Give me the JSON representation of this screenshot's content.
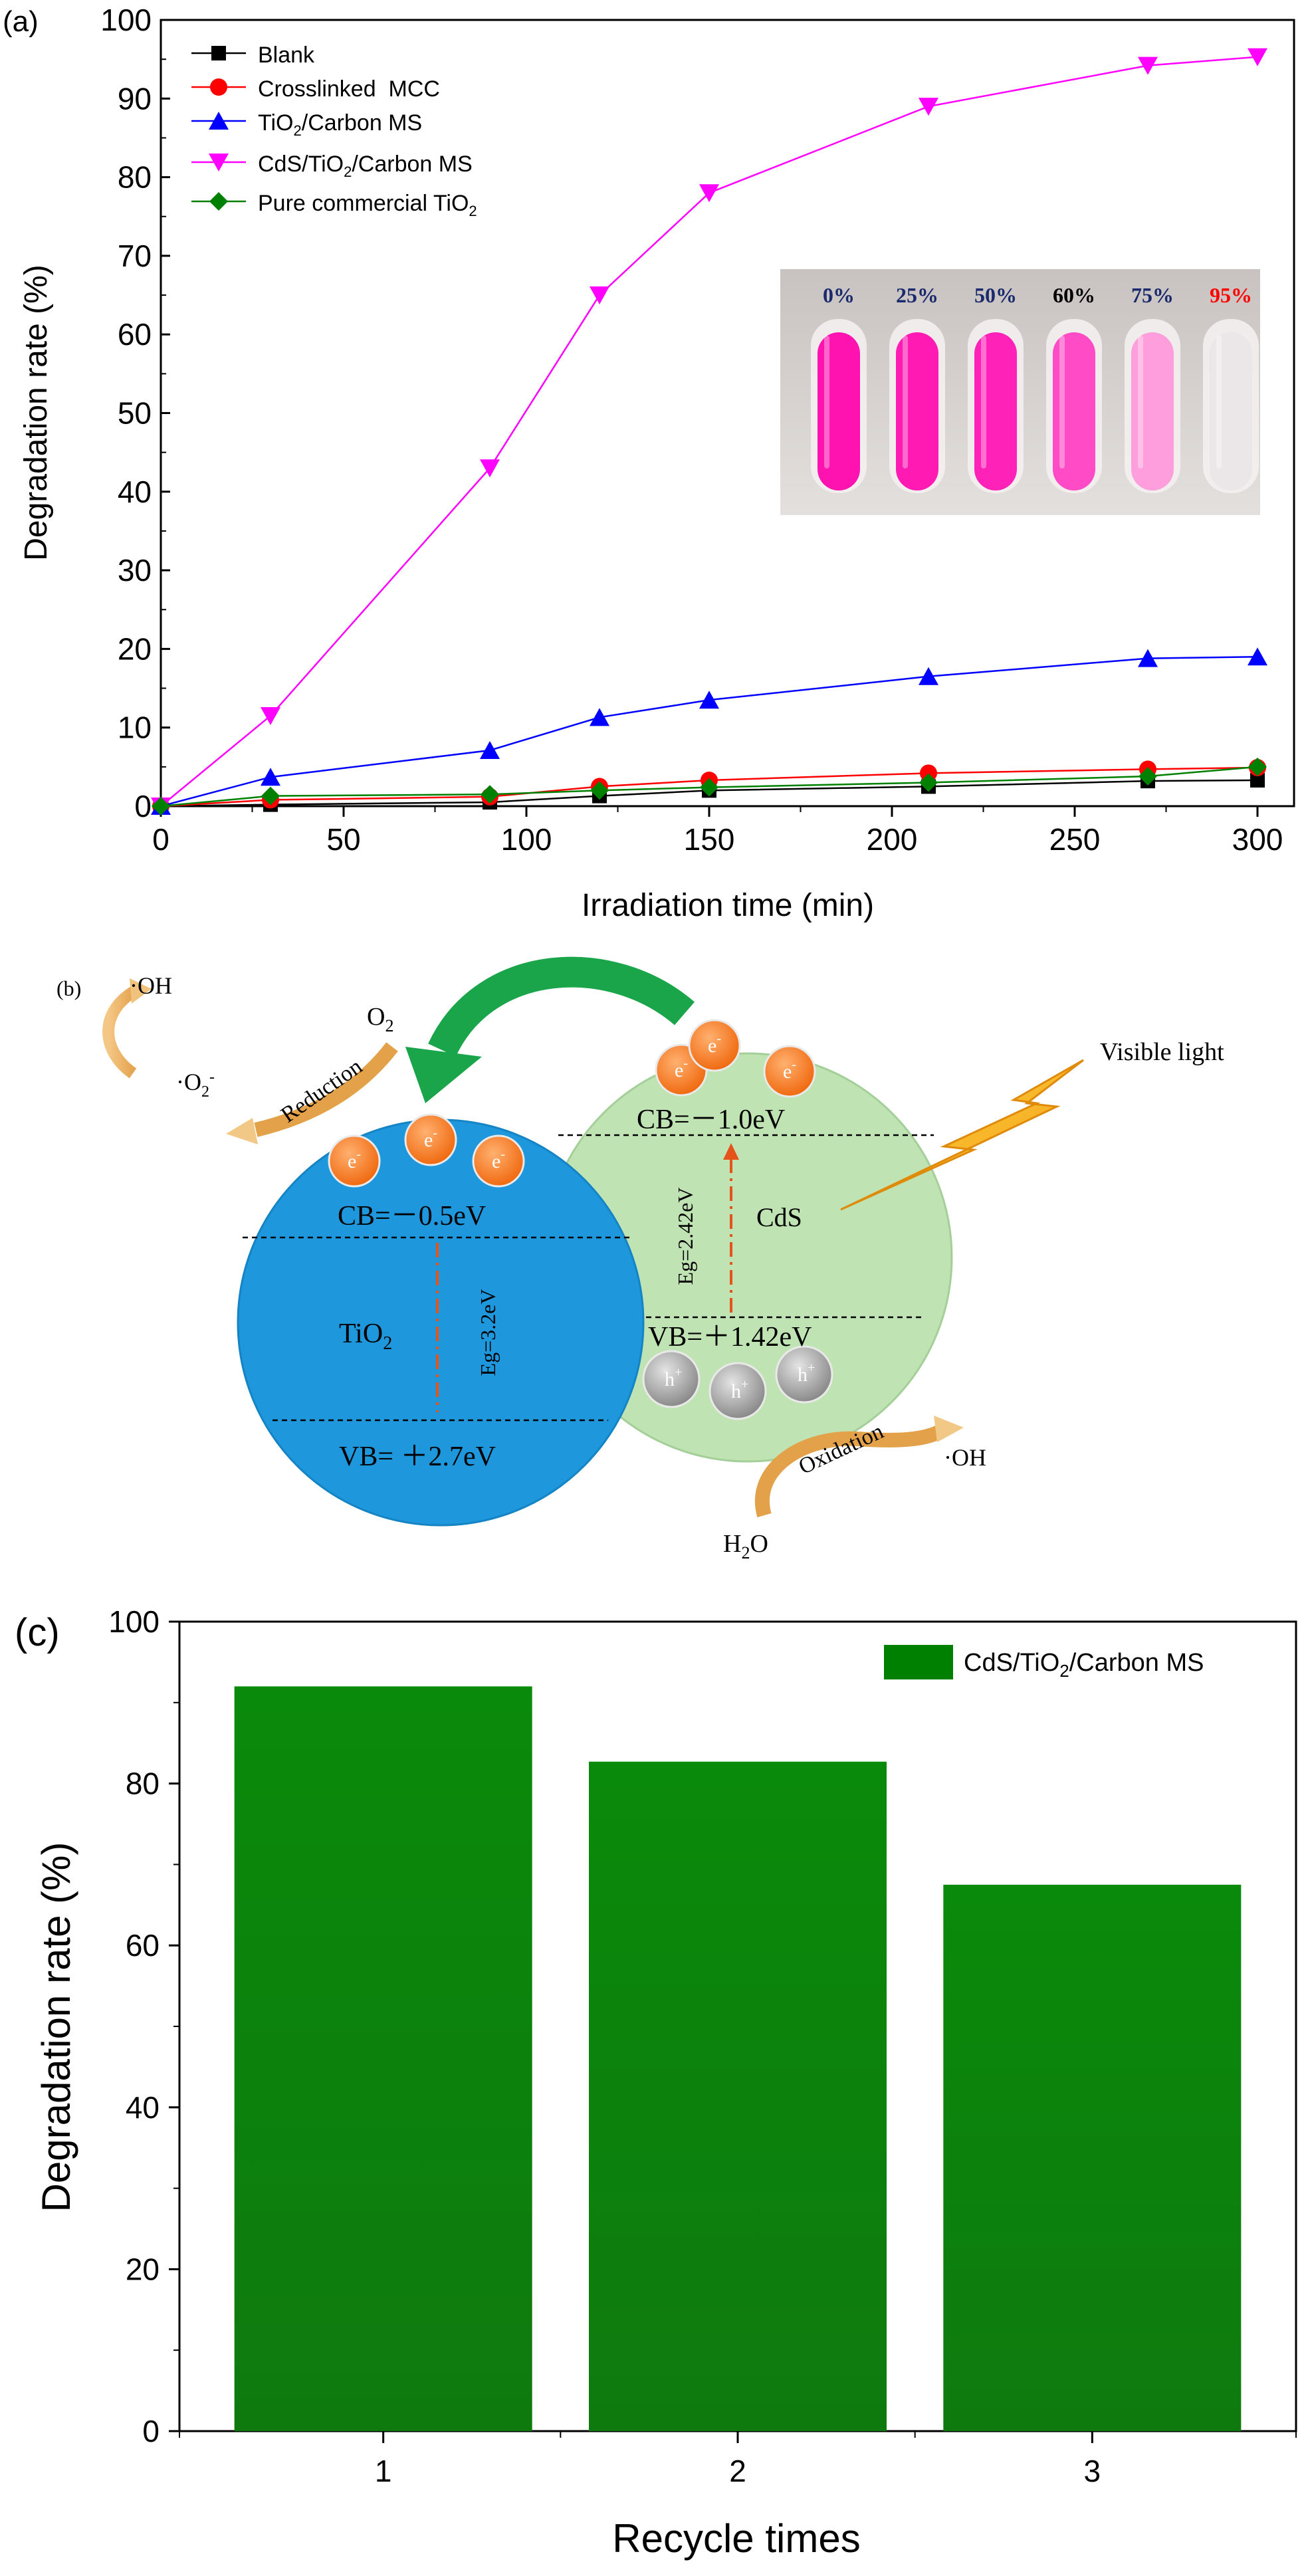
{
  "chart_data": [
    {
      "type": "line",
      "panel_label": "(a)",
      "xlabel": "Irradiation time (min)",
      "ylabel": "Degradation rate (%)",
      "xlim": [
        0,
        310
      ],
      "ylim": [
        0,
        100
      ],
      "xticks": [
        "0",
        "50",
        "100",
        "150",
        "200",
        "250",
        "300"
      ],
      "yticks": [
        "0",
        "10",
        "20",
        "30",
        "40",
        "50",
        "60",
        "70",
        "80",
        "90",
        "100"
      ],
      "series": [
        {
          "name": "Blank",
          "marker": "square",
          "color": "#000000",
          "x": [
            0,
            30,
            90,
            120,
            150,
            210,
            270,
            300
          ],
          "y": [
            0,
            0.2,
            0.5,
            1.3,
            2.0,
            2.5,
            3.2,
            3.3
          ]
        },
        {
          "name": "Crosslinked  MCC",
          "marker": "circle",
          "color": "#ff0000",
          "x": [
            0,
            30,
            90,
            120,
            150,
            210,
            270,
            300
          ],
          "y": [
            0,
            0.8,
            1.2,
            2.5,
            3.3,
            4.2,
            4.7,
            4.9
          ]
        },
        {
          "name": "TiO2/Carbon MS",
          "marker": "triangle-up",
          "color": "#0000ff",
          "x": [
            0,
            30,
            90,
            120,
            150,
            210,
            270,
            300
          ],
          "y": [
            0,
            3.7,
            7.1,
            11.3,
            13.5,
            16.5,
            18.8,
            19.0
          ]
        },
        {
          "name": "CdS/TiO2/Carbon MS",
          "marker": "triangle-down",
          "color": "#ff00ff",
          "x": [
            0,
            30,
            90,
            120,
            150,
            210,
            270,
            300
          ],
          "y": [
            0,
            11.5,
            43,
            65,
            78,
            89,
            94.2,
            95.3
          ]
        },
        {
          "name": "Pure commercial TiO2",
          "marker": "diamond",
          "color": "#008000",
          "x": [
            0,
            30,
            90,
            120,
            150,
            210,
            270,
            300
          ],
          "y": [
            0,
            1.3,
            1.5,
            2.0,
            2.4,
            3.0,
            3.8,
            5.0
          ]
        }
      ],
      "legend": [
        "Blank",
        "Crosslinked  MCC",
        "TiO2/Carbon MS",
        "CdS/TiO2/Carbon MS",
        "Pure commercial TiO2"
      ],
      "inset_labels": [
        {
          "text": "0%",
          "color": "#1a2a6c"
        },
        {
          "text": "25%",
          "color": "#1a2a6c"
        },
        {
          "text": "50%",
          "color": "#1a2a6c"
        },
        {
          "text": "60%",
          "color": "#000000"
        },
        {
          "text": "75%",
          "color": "#1a2a6c"
        },
        {
          "text": "95%",
          "color": "#ff0000"
        }
      ]
    },
    {
      "type": "bar",
      "panel_label": "(c)",
      "categories": [
        "1",
        "2",
        "3"
      ],
      "series": [
        {
          "name": "CdS/TiO2/Carbon MS",
          "values": [
            92,
            82.7,
            67.5
          ],
          "color": "#008000"
        }
      ],
      "xlabel": "Recycle times",
      "ylabel": "Degradation rate (%)",
      "ylim": [
        0,
        100
      ],
      "yticks": [
        "0",
        "20",
        "40",
        "60",
        "80",
        "100"
      ]
    }
  ],
  "diagram": {
    "panel_label": "(b)",
    "oh_top": "·OH",
    "o2_radical": "·O",
    "reduction": "Reduction",
    "o2": "O",
    "visible_light": "Visible light",
    "electron": "e",
    "hole": "h",
    "cds_cb": "CB=－1.0eV",
    "cds_eg": "Eg=2.42eV",
    "cds_name": "CdS",
    "cds_vb": "VB=＋1.42eV",
    "tio2_cb": "CB=－0.5eV",
    "tio2_name": "TiO",
    "tio2_eg": "Eg=3.2eV",
    "tio2_vb": "VB= ＋2.7eV",
    "oxidation": "Oxidation",
    "oh_bottom": "·OH",
    "h2o": "H",
    "h2o_tail": "O"
  }
}
